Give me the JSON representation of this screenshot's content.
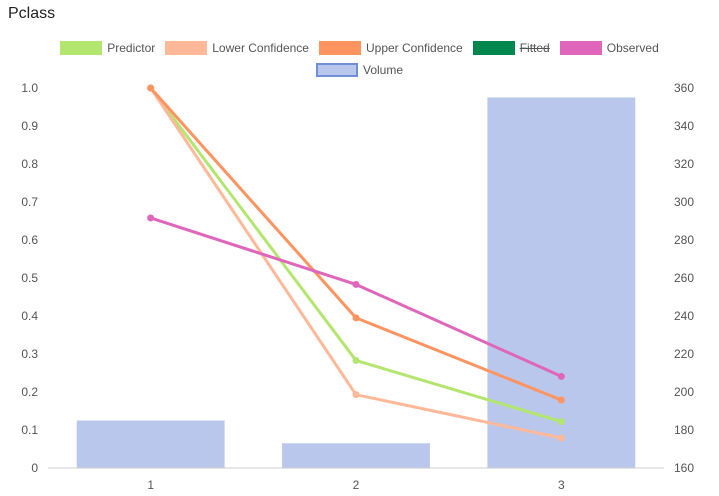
{
  "title": "Pclass",
  "legend": [
    {
      "label": "Predictor",
      "color": "#b3e66e",
      "fill": "#b3e66e",
      "struck": false
    },
    {
      "label": "Lower Confidence",
      "color": "#ffb999",
      "fill": "#ffb999",
      "struck": false
    },
    {
      "label": "Upper Confidence",
      "color": "#ff9460",
      "fill": "#ff9460",
      "struck": false
    },
    {
      "label": "Fitted",
      "color": "#00874d",
      "fill": "#00874d",
      "struck": true
    },
    {
      "label": "Observed",
      "color": "#e066bb",
      "fill": "#e066bb",
      "struck": false
    },
    {
      "label": "Volume",
      "color": "#6f8fd6",
      "fill": "#b8c7eb",
      "struck": false
    }
  ],
  "chart_data": {
    "type": "bar",
    "categories": [
      "1",
      "2",
      "3"
    ],
    "left_axis": {
      "ylim": [
        0,
        1.0
      ],
      "ticks": [
        "0",
        "0.1",
        "0.2",
        "0.3",
        "0.4",
        "0.5",
        "0.6",
        "0.7",
        "0.8",
        "0.9",
        "1.0"
      ]
    },
    "right_axis": {
      "ylim": [
        160,
        360
      ],
      "ticks": [
        "160",
        "180",
        "200",
        "220",
        "240",
        "260",
        "280",
        "300",
        "320",
        "340",
        "360"
      ]
    },
    "bars": {
      "name": "Volume",
      "axis": "right",
      "color": "#b8c7eb",
      "values": [
        185,
        173,
        355
      ]
    },
    "series": [
      {
        "name": "Predictor",
        "axis": "left",
        "color": "#b3e66e",
        "values": [
          1.0,
          0.283,
          0.122
        ]
      },
      {
        "name": "Lower Confidence",
        "axis": "left",
        "color": "#ffb999",
        "values": [
          1.0,
          0.193,
          0.079
        ]
      },
      {
        "name": "Upper Confidence",
        "axis": "left",
        "color": "#ff9460",
        "values": [
          1.0,
          0.395,
          0.179
        ]
      },
      {
        "name": "Observed",
        "axis": "left",
        "color": "#e066bb",
        "values": [
          0.658,
          0.483,
          0.241
        ]
      }
    ],
    "grid": false,
    "legend_position": "top"
  }
}
